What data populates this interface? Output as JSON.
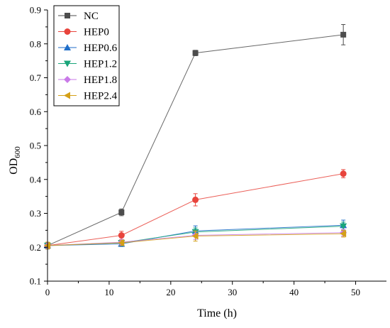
{
  "chart_data": {
    "type": "line",
    "title": "",
    "xlabel": "Time (h)",
    "ylabel": "OD",
    "ylabel_sub": "600",
    "xlim": [
      0,
      55
    ],
    "ylim": [
      0.1,
      0.9
    ],
    "x_ticks": [
      "0",
      "10",
      "20",
      "30",
      "40",
      "50"
    ],
    "y_ticks": [
      "0.1",
      "0.2",
      "0.3",
      "0.4",
      "0.5",
      "0.6",
      "0.7",
      "0.8",
      "0.9"
    ],
    "x_tick_values": [
      0,
      10,
      20,
      30,
      40,
      50
    ],
    "y_tick_values": [
      0.1,
      0.2,
      0.3,
      0.4,
      0.5,
      0.6,
      0.7,
      0.8,
      0.9
    ],
    "grid": false,
    "legend_position": "top-left",
    "x": [
      0,
      12,
      24,
      48
    ],
    "series": [
      {
        "name": "NC",
        "values": [
          0.205,
          0.303,
          0.773,
          0.827
        ],
        "errors": [
          0.01,
          0.01,
          0.008,
          0.03
        ],
        "color": "#4d4d4d",
        "marker": "square"
      },
      {
        "name": "HEP0",
        "values": [
          0.205,
          0.235,
          0.34,
          0.417
        ],
        "errors": [
          0.01,
          0.012,
          0.018,
          0.012
        ],
        "color": "#e8443c",
        "marker": "circle"
      },
      {
        "name": "HEP0.6",
        "values": [
          0.205,
          0.21,
          0.248,
          0.265
        ],
        "errors": [
          0.01,
          0.008,
          0.015,
          0.015
        ],
        "color": "#1f6ec9",
        "marker": "triangle-up"
      },
      {
        "name": "HEP1.2",
        "values": [
          0.205,
          0.213,
          0.245,
          0.262
        ],
        "errors": [
          0.01,
          0.008,
          0.012,
          0.012
        ],
        "color": "#1aa57a",
        "marker": "triangle-down"
      },
      {
        "name": "HEP1.8",
        "values": [
          0.205,
          0.215,
          0.235,
          0.243
        ],
        "errors": [
          0.01,
          0.008,
          0.012,
          0.01
        ],
        "color": "#c97ae8",
        "marker": "diamond"
      },
      {
        "name": "HEP2.4",
        "values": [
          0.205,
          0.213,
          0.233,
          0.24
        ],
        "errors": [
          0.01,
          0.008,
          0.015,
          0.01
        ],
        "color": "#d4a017",
        "marker": "triangle-left"
      }
    ]
  }
}
